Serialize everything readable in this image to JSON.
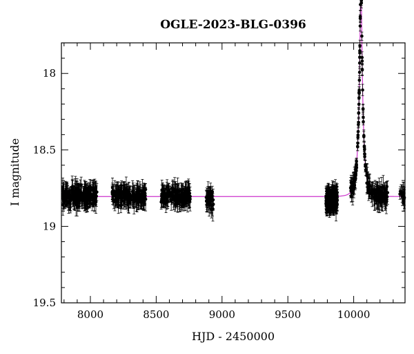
{
  "chart_data": {
    "type": "scatter",
    "title": "OGLE-2023-BLG-0396",
    "xlabel": "HJD - 2450000",
    "ylabel": "I magnitude",
    "xlim": [
      7780,
      10390
    ],
    "ylim": [
      19.5,
      17.8
    ],
    "y_inverted": true,
    "x_major_ticks": [
      8000,
      8500,
      9000,
      9500,
      10000
    ],
    "x_minor_step": 100,
    "y_major_ticks": [
      18,
      18.5,
      19,
      19.5
    ],
    "y_major_tick_labels": [
      "18",
      "18.5",
      "19",
      "19.5"
    ],
    "y_minor_step": 0.1,
    "grid": false,
    "colors": {
      "data": "#000000",
      "model": "#cc33cc"
    },
    "model": {
      "baseline_mag": 18.805,
      "t0": 10055,
      "tE": 38,
      "u0": 0.16,
      "fs": 0.5
    },
    "observing_seasons": [
      {
        "start": 7790,
        "end": 8050,
        "mag": 18.8,
        "n": 210
      },
      {
        "start": 8165,
        "end": 8420,
        "mag": 18.8,
        "n": 180
      },
      {
        "start": 8530,
        "end": 8760,
        "mag": 18.8,
        "n": 150
      },
      {
        "start": 8880,
        "end": 8935,
        "mag": 18.83,
        "n": 40
      },
      {
        "start": 9790,
        "end": 9875,
        "mag": 18.83,
        "n": 230
      },
      {
        "start": 9975,
        "end": 10260,
        "mag": "model",
        "n": 190
      },
      {
        "start": 10350,
        "end": 10390,
        "mag": 18.8,
        "n": 14
      }
    ]
  }
}
